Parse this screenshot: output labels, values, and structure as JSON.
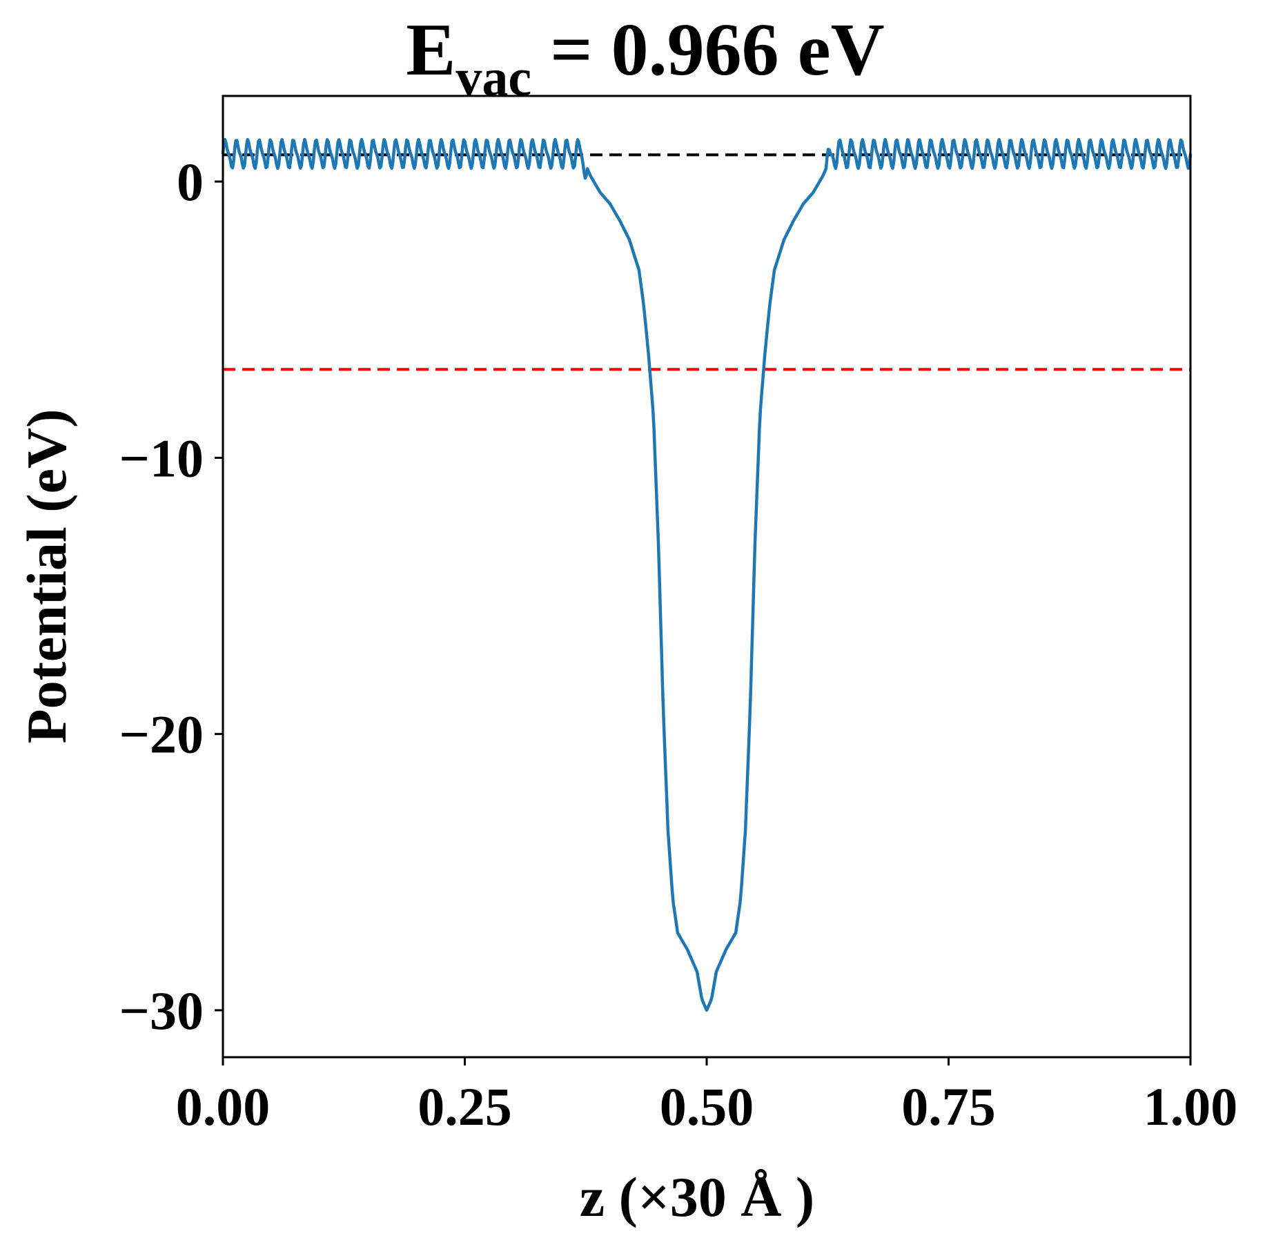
{
  "chart_data": {
    "type": "line",
    "title": {
      "base": "E",
      "subscript": "vac",
      "rest": " = 0.966 eV"
    },
    "xlabel": "z (×30 Å )",
    "ylabel": "Potential (eV)",
    "xlim": [
      0,
      1
    ],
    "ylim": [
      -31.7,
      3.1
    ],
    "x_ticks": [
      0,
      0.25,
      0.5,
      0.75,
      1.0
    ],
    "x_tick_labels": [
      "0.00",
      "0.25",
      "0.50",
      "0.75",
      "1.00"
    ],
    "y_ticks": [
      0,
      -10,
      -20,
      -30
    ],
    "y_tick_labels": [
      "0",
      "−10",
      "−20",
      "−30"
    ],
    "grid": false,
    "series": [
      {
        "color": "#1f77b4",
        "x": [
          0.0,
          0.37,
          0.38,
          0.39,
          0.4,
          0.41,
          0.42,
          0.43,
          0.435,
          0.44,
          0.445,
          0.45,
          0.455,
          0.46,
          0.465,
          0.47,
          0.48,
          0.49,
          0.495,
          0.5,
          0.505,
          0.51,
          0.52,
          0.53,
          0.535,
          0.54,
          0.545,
          0.55,
          0.555,
          0.56,
          0.565,
          0.57,
          0.58,
          0.59,
          0.6,
          0.61,
          0.62,
          0.63,
          1.0
        ],
        "y": [
          1.0,
          1.0,
          0.2,
          -0.4,
          -0.8,
          -1.4,
          -2.1,
          -3.2,
          -4.5,
          -6.3,
          -8.5,
          -13.0,
          -19.0,
          -23.5,
          -26.0,
          -27.2,
          -27.8,
          -28.6,
          -29.6,
          -30.0,
          -29.6,
          -28.6,
          -27.8,
          -27.2,
          -26.0,
          -23.5,
          -19.0,
          -13.0,
          -8.5,
          -6.3,
          -4.5,
          -3.2,
          -2.1,
          -1.4,
          -0.8,
          -0.4,
          0.2,
          1.0,
          1.0
        ]
      }
    ],
    "reference_lines": [
      {
        "y": 0.966,
        "color": "#000000",
        "style": "dashed"
      },
      {
        "y": -6.8,
        "color": "#ff0000",
        "style": "dashed"
      }
    ]
  }
}
